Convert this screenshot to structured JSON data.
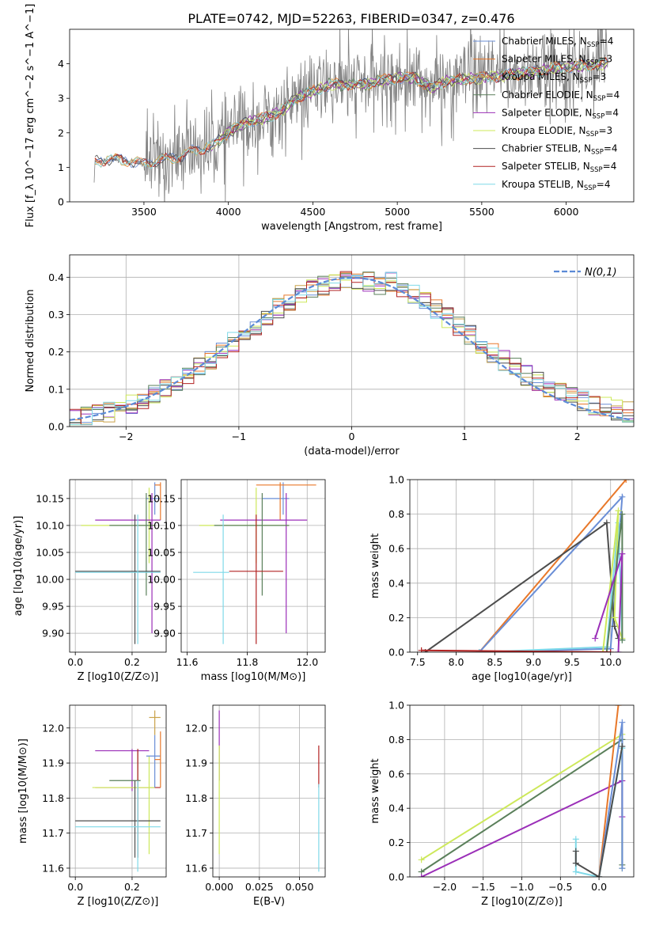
{
  "figure": {
    "title": "PLATE=0742, MJD=52263, FIBERID=0347, z=0.476"
  },
  "colors": {
    "chabrier_miles": "#6a8ed6",
    "salpeter_miles": "#e8782a",
    "kroupa_miles": "#c9a24a",
    "chabrier_elodie": "#5a7f5a",
    "salpeter_elodie": "#9b2fb8",
    "kroupa_elodie": "#cde85a",
    "chabrier_stelib": "#4d4d4d",
    "salpeter_stelib": "#b22222",
    "kroupa_stelib": "#7fd9e8",
    "data": "#808080",
    "normal": "#5b8ad6"
  },
  "legend_spectrum": [
    "Chabrier MILES, N_SSP=4",
    "Salpeter MILES, N_SSP=3",
    "Kroupa MILES, N_SSP=3",
    "Chabrier ELODIE, N_SSP=4",
    "Salpeter ELODIE, N_SSP=4",
    "Kroupa ELODIE, N_SSP=3",
    "Chabrier STELIB, N_SSP=4",
    "Salpeter STELIB, N_SSP=4",
    "Kroupa STELIB, N_SSP=4"
  ],
  "chart_data": [
    {
      "id": "spectrum",
      "type": "line",
      "title": "PLATE=0742, MJD=52263, FIBERID=0347, z=0.476",
      "xlabel": "wavelength [Angstrom, rest frame]",
      "ylabel": "Flux [f_λ 10^−17 erg cm^−2 s^−1 A^−1]",
      "xlim": [
        3060,
        6400
      ],
      "ylim": [
        0,
        5
      ],
      "xticks": [
        3500,
        4000,
        4500,
        5000,
        5500,
        6000
      ],
      "yticks": [
        0,
        1,
        2,
        3,
        4
      ],
      "grid": false,
      "legend": "upper right",
      "model_continuum": [
        [
          3200,
          0
        ],
        [
          3210,
          1.15
        ],
        [
          3300,
          1.25
        ],
        [
          3400,
          1.2
        ],
        [
          3500,
          1.1
        ],
        [
          3600,
          1.2
        ],
        [
          3700,
          1.3
        ],
        [
          3800,
          1.5
        ],
        [
          3900,
          1.6
        ],
        [
          4000,
          2.0
        ],
        [
          4100,
          2.3
        ],
        [
          4200,
          2.4
        ],
        [
          4300,
          2.6
        ],
        [
          4400,
          3.0
        ],
        [
          4500,
          3.2
        ],
        [
          4600,
          3.4
        ],
        [
          4700,
          3.4
        ],
        [
          4800,
          3.4
        ],
        [
          4900,
          3.5
        ],
        [
          5000,
          3.6
        ],
        [
          5100,
          3.6
        ],
        [
          5200,
          3.3
        ],
        [
          5300,
          3.5
        ],
        [
          5400,
          3.55
        ],
        [
          5500,
          3.6
        ],
        [
          5600,
          3.65
        ],
        [
          5700,
          3.7
        ],
        [
          5800,
          3.75
        ],
        [
          5900,
          3.85
        ],
        [
          6000,
          3.9
        ],
        [
          6100,
          3.95
        ],
        [
          6250,
          4.0
        ]
      ]
    },
    {
      "id": "residuals",
      "type": "step",
      "xlabel": "(data-model)/error",
      "ylabel": "Normed distribution",
      "xlim": [
        -2.5,
        2.5
      ],
      "ylim": [
        0,
        0.46
      ],
      "xticks": [
        -2,
        -1,
        0,
        1,
        2
      ],
      "yticks": [
        0.0,
        0.1,
        0.2,
        0.3,
        0.4
      ],
      "grid": true,
      "legend": "upper right",
      "legend_label": "N(0,1)",
      "bin_width": 0.1
    },
    {
      "id": "age_vs_Z",
      "type": "errorbar",
      "xlabel": "Z [log10(Z/Z⊙)]",
      "ylabel": "age  [log10(age/yr)]",
      "xlim": [
        -0.02,
        0.32
      ],
      "ylim": [
        9.865,
        10.185
      ],
      "xticks": [
        0.0,
        0.2
      ],
      "yticks": [
        9.9,
        9.95,
        10.0,
        10.05,
        10.1,
        10.15
      ],
      "grid": true,
      "points": [
        {
          "series": "chabrier_miles",
          "x": 0.28,
          "y": 10.15,
          "xerr": [
            0.25,
            0.3
          ],
          "yerr": [
            10.12,
            10.18
          ]
        },
        {
          "series": "salpeter_miles",
          "x": 0.3,
          "y": 10.175,
          "xerr": [
            0.28,
            0.3
          ],
          "yerr": [
            10.11,
            10.18
          ]
        },
        {
          "series": "kroupa_elodie",
          "x": 0.26,
          "y": 10.1,
          "xerr": [
            0.02,
            0.28
          ],
          "yerr": [
            10.03,
            10.17
          ]
        },
        {
          "series": "salpeter_elodie",
          "x": 0.27,
          "y": 10.11,
          "xerr": [
            0.07,
            0.3
          ],
          "yerr": [
            9.9,
            10.16
          ]
        },
        {
          "series": "chabrier_elodie",
          "x": 0.25,
          "y": 10.1,
          "xerr": [
            0.12,
            0.28
          ],
          "yerr": [
            9.97,
            10.16
          ]
        },
        {
          "series": "chabrier_stelib",
          "x": 0.21,
          "y": 10.015,
          "xerr": [
            0.0,
            0.3
          ],
          "yerr": [
            9.88,
            10.12
          ]
        },
        {
          "series": "kroupa_stelib",
          "x": 0.22,
          "y": 10.013,
          "xerr": [
            0.0,
            0.3
          ],
          "yerr": [
            9.88,
            10.12
          ]
        }
      ]
    },
    {
      "id": "age_vs_mass",
      "type": "errorbar",
      "xlabel": "mass [log10(M/M⊙)]",
      "ylabel": "",
      "xlim": [
        11.58,
        12.06
      ],
      "ylim": [
        9.865,
        10.185
      ],
      "xticks": [
        11.6,
        11.8,
        12.0
      ],
      "yticks": [
        9.9,
        9.95,
        10.0,
        10.05,
        10.1,
        10.15
      ],
      "grid": true,
      "points": [
        {
          "series": "chabrier_miles",
          "x": 11.92,
          "y": 10.15,
          "xerr": [
            11.85,
            11.94
          ],
          "yerr": [
            10.12,
            10.18
          ]
        },
        {
          "series": "salpeter_miles",
          "x": 11.91,
          "y": 10.175,
          "xerr": [
            11.83,
            12.03
          ],
          "yerr": [
            10.11,
            10.18
          ]
        },
        {
          "series": "kroupa_elodie",
          "x": 11.83,
          "y": 10.1,
          "xerr": [
            11.64,
            11.94
          ],
          "yerr": [
            10.03,
            10.17
          ]
        },
        {
          "series": "salpeter_elodie",
          "x": 11.93,
          "y": 10.11,
          "xerr": [
            11.71,
            12.0
          ],
          "yerr": [
            9.9,
            10.16
          ]
        },
        {
          "series": "chabrier_elodie",
          "x": 11.85,
          "y": 10.1,
          "xerr": [
            11.69,
            11.94
          ],
          "yerr": [
            9.97,
            10.16
          ]
        },
        {
          "series": "salpeter_stelib",
          "x": 11.83,
          "y": 10.015,
          "xerr": [
            11.74,
            11.92
          ],
          "yerr": [
            9.88,
            10.12
          ]
        },
        {
          "series": "kroupa_stelib",
          "x": 11.72,
          "y": 10.013,
          "xerr": [
            11.62,
            11.74
          ],
          "yerr": [
            9.88,
            10.12
          ]
        }
      ]
    },
    {
      "id": "mass_weight_vs_age",
      "type": "line",
      "xlabel": "age  [log10(age/yr)]",
      "ylabel": "mass weight",
      "xlim": [
        7.4,
        10.3
      ],
      "ylim": [
        0,
        1
      ],
      "xticks": [
        7.5,
        8.0,
        8.5,
        9.0,
        9.5,
        10.0
      ],
      "yticks": [
        0.0,
        0.2,
        0.4,
        0.6,
        0.8,
        1.0
      ],
      "grid": true,
      "series": [
        {
          "name": "salpeter_miles",
          "points": [
            [
              8.3,
              0.0
            ],
            [
              10.2,
              1.0
            ]
          ]
        },
        {
          "name": "chabrier_miles",
          "points": [
            [
              8.3,
              0.0
            ],
            [
              10.15,
              0.9
            ],
            [
              10.0,
              0.02
            ],
            [
              8.3,
              0.0
            ]
          ]
        },
        {
          "name": "chabrier_stelib",
          "points": [
            [
              7.6,
              0.0
            ],
            [
              9.95,
              0.75
            ],
            [
              10.05,
              0.15
            ],
            [
              10.1,
              0.08
            ]
          ]
        },
        {
          "name": "kroupa_stelib",
          "points": [
            [
              8.3,
              0.0
            ],
            [
              9.95,
              0.03
            ],
            [
              10.1,
              0.75
            ],
            [
              10.15,
              0.07
            ]
          ]
        },
        {
          "name": "kroupa_elodie",
          "points": [
            [
              9.9,
              0.0
            ],
            [
              10.1,
              0.82
            ],
            [
              10.05,
              0.2
            ],
            [
              10.15,
              0.08
            ]
          ]
        },
        {
          "name": "chabrier_elodie",
          "points": [
            [
              9.95,
              0.0
            ],
            [
              10.15,
              0.8
            ],
            [
              10.15,
              0.07
            ]
          ]
        },
        {
          "name": "salpeter_elodie",
          "points": [
            [
              9.8,
              0.08
            ],
            [
              10.15,
              0.57
            ],
            [
              10.1,
              0.0
            ]
          ]
        },
        {
          "name": "salpeter_stelib",
          "points": [
            [
              7.55,
              0.01
            ],
            [
              10.0,
              0.0
            ]
          ]
        }
      ]
    },
    {
      "id": "mass_vs_Z",
      "type": "errorbar",
      "xlabel": "Z [log10(Z/Z⊙)]",
      "ylabel": "mass [log10(M/M⊙)]",
      "xlim": [
        -0.02,
        0.32
      ],
      "ylim": [
        11.575,
        12.065
      ],
      "xticks": [
        0.0,
        0.2
      ],
      "yticks": [
        11.6,
        11.7,
        11.8,
        11.9,
        12.0
      ],
      "grid": true,
      "points": [
        {
          "series": "salpeter_elodie",
          "x": 0.2,
          "y": 11.935,
          "xerr": [
            0.07,
            0.26
          ],
          "yerr": [
            11.82,
            11.94
          ]
        },
        {
          "series": "chabrier_elodie",
          "x": 0.22,
          "y": 11.85,
          "xerr": [
            0.12,
            0.23
          ],
          "yerr": [
            11.63,
            11.94
          ]
        },
        {
          "series": "salpeter_stelib",
          "x": 0.22,
          "y": 11.83,
          "xerr": [
            0.07,
            0.3
          ],
          "yerr": [
            11.63,
            11.94
          ]
        },
        {
          "series": "kroupa_elodie",
          "x": 0.26,
          "y": 11.83,
          "xerr": [
            0.06,
            0.28
          ],
          "yerr": [
            11.64,
            11.92
          ]
        },
        {
          "series": "chabrier_stelib",
          "x": 0.21,
          "y": 11.735,
          "xerr": [
            0.0,
            0.3
          ],
          "yerr": [
            11.63,
            11.85
          ]
        },
        {
          "series": "kroupa_stelib",
          "x": 0.22,
          "y": 11.718,
          "xerr": [
            0.0,
            0.3
          ],
          "yerr": [
            11.59,
            11.85
          ]
        },
        {
          "series": "chabrier_miles",
          "x": 0.28,
          "y": 11.92,
          "xerr": [
            0.25,
            0.3
          ],
          "yerr": [
            11.83,
            11.98
          ]
        },
        {
          "series": "salpeter_miles",
          "x": 0.3,
          "y": 11.91,
          "xerr": [
            0.28,
            0.3
          ],
          "yerr": [
            11.83,
            11.99
          ]
        },
        {
          "series": "kroupa_miles",
          "x": 0.28,
          "y": 12.03,
          "xerr": [
            0.26,
            0.3
          ],
          "yerr": [
            11.98,
            12.05
          ]
        }
      ]
    },
    {
      "id": "mass_vs_ebv",
      "type": "errorbar",
      "xlabel": "E(B-V)",
      "ylabel": "",
      "xlim": [
        -0.004,
        0.066
      ],
      "ylim": [
        11.575,
        12.065
      ],
      "xticks": [
        0.0,
        0.025,
        0.05
      ],
      "yticks": [
        11.6,
        11.7,
        11.8,
        11.9,
        12.0
      ],
      "grid": true,
      "points": [
        {
          "series": "salpeter_elodie",
          "x": 0.0,
          "y": 11.93,
          "yerr": [
            11.85,
            12.05
          ]
        },
        {
          "series": "kroupa_elodie",
          "x": 0.0,
          "y": 11.8,
          "yerr": [
            11.64,
            11.95
          ]
        },
        {
          "series": "salpeter_stelib",
          "x": 0.062,
          "y": 11.88,
          "yerr": [
            11.83,
            11.95
          ]
        },
        {
          "series": "kroupa_stelib",
          "x": 0.062,
          "y": 11.72,
          "yerr": [
            11.59,
            11.84
          ]
        }
      ]
    },
    {
      "id": "mass_weight_vs_Z",
      "type": "line",
      "xlabel": "Z [log10(Z/Z⊙)]",
      "ylabel": "mass weight",
      "xlim": [
        -2.45,
        0.45
      ],
      "ylim": [
        0,
        1
      ],
      "xticks": [
        -2.0,
        -1.5,
        -1.0,
        -0.5,
        0.0
      ],
      "yticks": [
        0.0,
        0.2,
        0.4,
        0.6,
        0.8,
        1.0
      ],
      "grid": true,
      "series": [
        {
          "name": "kroupa_elodie",
          "points": [
            [
              -2.3,
              0.1
            ],
            [
              0.3,
              0.83
            ],
            [
              0.3,
              0.05
            ]
          ]
        },
        {
          "name": "chabrier_elodie",
          "points": [
            [
              -2.3,
              0.03
            ],
            [
              0.3,
              0.8
            ],
            [
              0.3,
              0.07
            ]
          ]
        },
        {
          "name": "salpeter_elodie",
          "points": [
            [
              -2.3,
              0.0
            ],
            [
              0.3,
              0.56
            ],
            [
              0.3,
              0.35
            ]
          ]
        },
        {
          "name": "salpeter_miles",
          "points": [
            [
              0.0,
              0.0
            ],
            [
              0.25,
              1.0
            ]
          ]
        },
        {
          "name": "chabrier_miles",
          "points": [
            [
              0.0,
              0.0
            ],
            [
              0.3,
              0.9
            ],
            [
              0.3,
              0.05
            ]
          ]
        },
        {
          "name": "kroupa_stelib",
          "points": [
            [
              -0.3,
              0.22
            ],
            [
              -0.3,
              0.03
            ],
            [
              0.0,
              0.0
            ],
            [
              0.3,
              0.75
            ]
          ]
        },
        {
          "name": "chabrier_stelib",
          "points": [
            [
              -0.3,
              0.15
            ],
            [
              -0.3,
              0.08
            ],
            [
              0.0,
              0.0
            ],
            [
              0.3,
              0.76
            ]
          ]
        }
      ]
    }
  ]
}
